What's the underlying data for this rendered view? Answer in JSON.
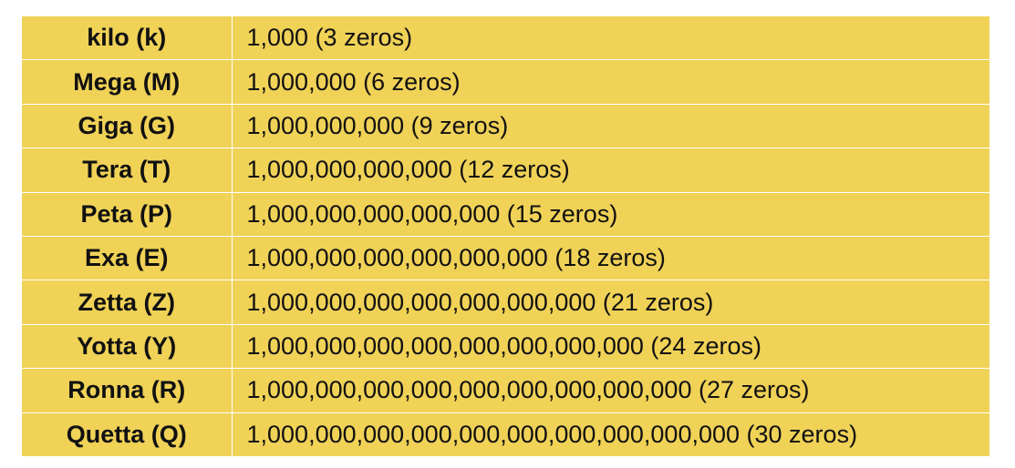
{
  "table": {
    "rows": [
      {
        "prefix": "kilo (k)",
        "value": "1,000 (3 zeros)"
      },
      {
        "prefix": "Mega (M)",
        "value": "1,000,000 (6 zeros)"
      },
      {
        "prefix": "Giga (G)",
        "value": "1,000,000,000 (9 zeros)"
      },
      {
        "prefix": "Tera (T)",
        "value": "1,000,000,000,000 (12 zeros)"
      },
      {
        "prefix": "Peta (P)",
        "value": "1,000,000,000,000,000 (15 zeros)"
      },
      {
        "prefix": "Exa (E)",
        "value": "1,000,000,000,000,000,000 (18 zeros)"
      },
      {
        "prefix": "Zetta (Z)",
        "value": "1,000,000,000,000,000,000,000 (21 zeros)"
      },
      {
        "prefix": "Yotta (Y)",
        "value": "1,000,000,000,000,000,000,000,000 (24 zeros)"
      },
      {
        "prefix": "Ronna (R)",
        "value": "1,000,000,000,000,000,000,000,000,000 (27 zeros)"
      },
      {
        "prefix": "Quetta (Q)",
        "value": "1,000,000,000,000,000,000,000,000,000,000 (30 zeros)"
      }
    ]
  },
  "colors": {
    "cell_background": "#f0d257",
    "grid_lines": "#ffffff",
    "text": "#111111"
  }
}
